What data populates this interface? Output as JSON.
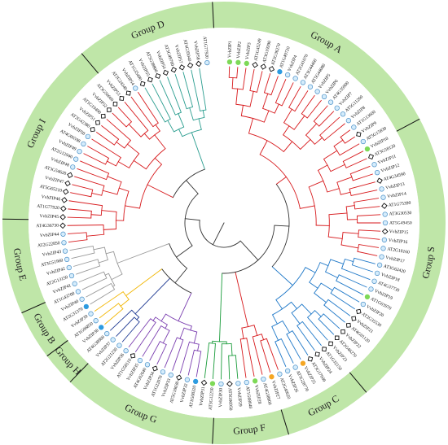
{
  "groups": [
    {
      "label": "Group A",
      "from": -3,
      "to": 62
    },
    {
      "label": "Group S",
      "from": 62,
      "to": 140
    },
    {
      "label": "Group C",
      "from": 140,
      "to": 163
    },
    {
      "label": "Group F",
      "from": 163,
      "to": 183
    },
    {
      "label": "Group G",
      "from": 183,
      "to": 224
    },
    {
      "label": "Group H",
      "from": 224,
      "to": 233
    },
    {
      "label": "Group B",
      "from": 233,
      "to": 246
    },
    {
      "label": "Group E",
      "from": 246,
      "to": 271
    },
    {
      "label": "Group I",
      "from": 271,
      "to": 320
    },
    {
      "label": "Group D",
      "from": 320,
      "to": 357
    }
  ],
  "colors": {
    "ring": "#bfe6a8",
    "ring_line": "#111111",
    "red": "#d7191c",
    "blue": "#1f78c8",
    "green": "#1a9c3b",
    "purple": "#7b3fb0",
    "teal": "#2a9d8f",
    "gold": "#f2b705",
    "navy": "#1f3a93",
    "gray": "#9a9a9a",
    "dark": "#333333",
    "circle_fill": "#d5ecfb",
    "circle_stroke": "#4a90c8",
    "green_dot": "#7ed957",
    "blue_dot": "#2d9be0",
    "orange_dot": "#f5a623"
  },
  "leaf_labels": [
    "VvbZIP1",
    "VvbZIP2",
    "VvbZIP3",
    "AT1G45249",
    "AT3G19290",
    "AT2G36270",
    "AT1G49720",
    "VvbZIP4",
    "AT2G41070",
    "AT3G44460",
    "AT5G44080",
    "VvbZIP5",
    "VvbZIP6",
    "AT4G35900",
    "VvbZIP7",
    "AT5G11260",
    "VvbZIP8",
    "AT1G13600",
    "VvbZIP9",
    "AT5G15830",
    "VvbZIP10",
    "AT3G58120",
    "VvbZIP11",
    "VvbZIP12",
    "AT4G34590",
    "VvbZIP13",
    "VvbZIP14",
    "AT1G75390",
    "AT3G30530",
    "AT5G49450",
    "VvbZIP15",
    "VvbZIP16",
    "AT2G18160",
    "VvbZIP17",
    "AT3G62420",
    "VvbZIP18",
    "AT4G37730",
    "VvbZIP19",
    "AT1G03970",
    "VvbZIP20",
    "AT2G35530",
    "VvbZIP21",
    "AT4G01120",
    "VvbZIP22",
    "AT2G46270",
    "VvbZIP23",
    "AT1G32150",
    "VvbZIP24",
    "AT3G17609",
    "VvbZIP25",
    "AT5G28770",
    "VvbZIP26",
    "AT2G40620",
    "VvbZIP27",
    "AT4G38900",
    "VvbZIP28",
    "AT1G68640",
    "VvbZIP29",
    "AT5G06950",
    "VvbZIP30",
    "AT3G12250",
    "VvbZIP31",
    "AT1G08320",
    "VvbZIP32",
    "AT5G10030",
    "VvbZIP33",
    "AT1G22070",
    "VvbZIP34",
    "AT4G02640",
    "VvbZIP35",
    "AT1G58110",
    "VvbZIP36",
    "AT2G21230",
    "VvbZIP37",
    "AT4G38900",
    "VvbZIP38",
    "AT1G06850",
    "VvbZIP39",
    "AT2G31370",
    "VvbZIP40",
    "AT1G43700",
    "VvbZIP41",
    "AT2G13150",
    "VvbZIP42",
    "AT3G51960",
    "VvbZIP43",
    "AT2G22850",
    "VvbZIP44",
    "AT4G36730",
    "VvbZIP45",
    "AT1G77920",
    "VvbZIP46",
    "AT5G65210",
    "VvbZIP47",
    "AT3G54620",
    "VvbZIP48",
    "AT2G12940",
    "VvbZIP49",
    "AT4G06598",
    "VvbZIP50",
    "AT2G42380",
    "VvbZIP51",
    "AT1G19490",
    "VvbZIP52",
    "AT3G56660",
    "VvbZIP53",
    "AT2G24340",
    "VvbZIP54",
    "AT1G35490",
    "VvbZIP55",
    "AT5G38800",
    "VvbZIP56",
    "AT3G49760",
    "VvbZIP57",
    "AT4G35040",
    "VvbZIP58",
    "AT1G77920"
  ]
}
